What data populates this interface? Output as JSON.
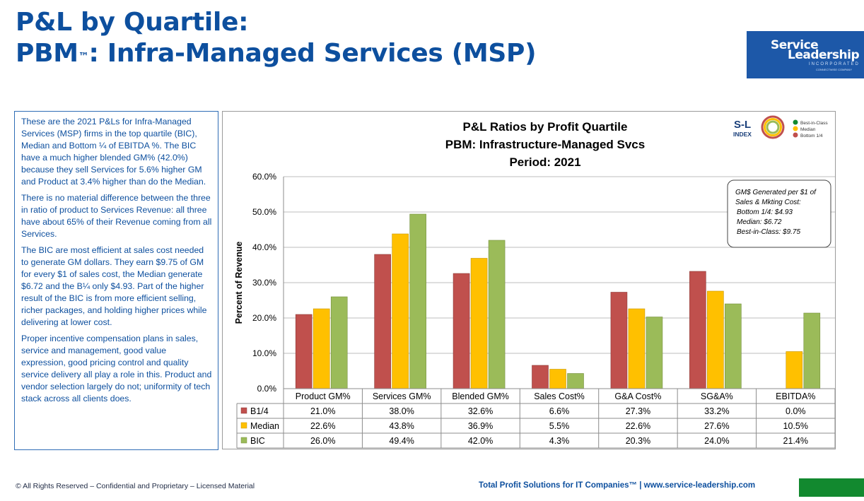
{
  "header": {
    "title_line1": "P&L by Quartile:",
    "title_line2_pre": "PBM",
    "title_line2_tm": "™",
    "title_line2_post": ": Infra-Managed Services (MSP)"
  },
  "logo": {
    "line1": "Service",
    "line2": "Leadership",
    "line3": "INCORPORATED",
    "line4": "CONNECTWISE COMPANY"
  },
  "narrative": [
    "These are the 2021 P&Ls for Infra-Managed Services (MSP) firms in the top quartile (BIC), Median and Bottom ¼ of EBITDA %. The BIC have a much higher blended GM% (42.0%) because they sell Services for 5.6% higher GM and Product at 3.4% higher than do the Median.",
    "There is no material difference between the three in ratio of product to Services Revenue: all three have about 65% of their Revenue coming from all Services.",
    "The BIC are most efficient at sales cost needed to generate GM dollars. They earn $9.75 of GM for every $1 of sales cost, the Median generate $6.72 and the B¼ only $4.93. Part of the higher result of the BIC is from more efficient selling, richer packages, and holding higher prices while delivering at lower cost.",
    "Proper incentive compensation plans in sales, service and management, good value expression, good pricing control and quality service delivery all play a role in this. Product and vendor selection largely do not; uniformity of tech stack across all clients does."
  ],
  "index_badge": {
    "line1": "S-L",
    "line2": "INDEX",
    "legend": [
      "Best-in-Class",
      "Median",
      "Bottom 1/4"
    ]
  },
  "callout": [
    "GM$ Generated per $1 of",
    "Sales & Mkting Cost:",
    "Bottom 1/4: $4.93",
    "Median: $6.72",
    "Best-in-Class: $9.75"
  ],
  "chart_data": {
    "type": "bar",
    "title": [
      "P&L Ratios by Profit Quartile",
      "PBM: Infrastructure-Managed Svcs",
      "Period: 2021"
    ],
    "ylabel": "Percent of Revenue",
    "ylim": [
      0,
      60
    ],
    "yticks": [
      "0.0%",
      "10.0%",
      "20.0%",
      "30.0%",
      "40.0%",
      "50.0%",
      "60.0%"
    ],
    "grid": true,
    "categories": [
      "Product GM%",
      "Services GM%",
      "Blended GM%",
      "Sales Cost%",
      "G&A Cost%",
      "SG&A%",
      "EBITDA%"
    ],
    "series": [
      {
        "name": "B1/4",
        "color": "#c0504d",
        "values": [
          21.0,
          38.0,
          32.6,
          6.6,
          27.3,
          33.2,
          0.0
        ],
        "labels": [
          "21.0%",
          "38.0%",
          "32.6%",
          "6.6%",
          "27.3%",
          "33.2%",
          "0.0%"
        ]
      },
      {
        "name": "Median",
        "color": "#ffc000",
        "values": [
          22.6,
          43.8,
          36.9,
          5.5,
          22.6,
          27.6,
          10.5
        ],
        "labels": [
          "22.6%",
          "43.8%",
          "36.9%",
          "5.5%",
          "22.6%",
          "27.6%",
          "10.5%"
        ]
      },
      {
        "name": "BIC",
        "color": "#9bbb59",
        "values": [
          26.0,
          49.4,
          42.0,
          4.3,
          20.3,
          24.0,
          21.4
        ],
        "labels": [
          "26.0%",
          "49.4%",
          "42.0%",
          "4.3%",
          "20.3%",
          "24.0%",
          "21.4%"
        ]
      }
    ]
  },
  "footer": {
    "left": "© All Rights Reserved – Confidential and Proprietary – Licensed Material",
    "right": "Total Profit Solutions for IT Companies™  |  www.service-leadership.com",
    "accent_color": "#12892f"
  }
}
